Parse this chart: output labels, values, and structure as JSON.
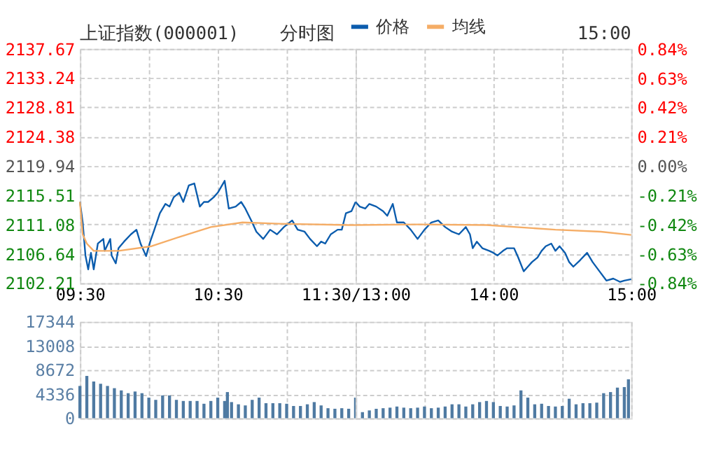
{
  "chart_data": [
    {
      "type": "line",
      "title": "上证指数(000001)",
      "subtitle": "分时图",
      "series": [
        {
          "name": "价格",
          "color": "#0b5cad",
          "x": [
            9.5,
            9.52,
            9.54,
            9.56,
            9.58,
            9.6,
            9.63,
            9.67,
            9.68,
            9.72,
            9.73,
            9.76,
            9.78,
            9.82,
            9.87,
            9.91,
            9.94,
            9.98,
            10.01,
            10.04,
            10.08,
            10.12,
            10.15,
            10.18,
            10.22,
            10.25,
            10.29,
            10.33,
            10.37,
            10.4,
            10.43,
            10.47,
            10.5,
            10.55,
            10.58,
            10.63,
            10.67,
            10.7,
            10.75,
            10.78,
            10.83,
            10.88,
            10.93,
            10.98,
            11.04,
            11.08,
            11.13,
            11.17,
            11.22,
            11.25,
            11.28,
            11.32,
            11.37,
            11.4,
            11.43,
            11.47,
            11.5
          ],
          "values": [
            2114.5,
            2111.4,
            2106.4,
            2104.3,
            2106.8,
            2104.3,
            2108.2,
            2108.9,
            2107.1,
            2108.9,
            2106.4,
            2105.2,
            2107.5,
            2108.5,
            2109.6,
            2110.3,
            2108.2,
            2106.3,
            2108.5,
            2110.3,
            2112.8,
            2114.2,
            2113.8,
            2115.2,
            2115.9,
            2114.5,
            2117.0,
            2117.3,
            2113.8,
            2114.5,
            2114.5,
            2115.2,
            2115.9,
            2117.7,
            2113.5,
            2113.8,
            2114.5,
            2113.5,
            2111.4,
            2110.0,
            2108.9,
            2110.3,
            2109.6,
            2110.7,
            2111.7,
            2110.3,
            2110.0,
            2108.9,
            2107.8,
            2108.5,
            2108.2,
            2109.6,
            2110.3,
            2110.3,
            2112.8,
            2113.1,
            2114.5
          ]
        },
        {
          "name": "均线",
          "color": "#f5ad66",
          "x": [
            9.5,
            9.52,
            9.55,
            9.6,
            9.78,
            10.02,
            10.22,
            10.45,
            10.68,
            10.95,
            11.45,
            11.5
          ],
          "values": [
            2114.5,
            2109.6,
            2108.2,
            2107.1,
            2107.1,
            2107.8,
            2109.2,
            2110.7,
            2111.4,
            2111.2,
            2111.0,
            2111.0
          ]
        }
      ],
      "xlim": [
        9.5,
        11.5
      ],
      "xticks": [
        {
          "value": 9.5,
          "label": "09:30"
        },
        {
          "value": 10,
          "label": null
        },
        {
          "value": 10.5,
          "label": "10:30"
        },
        {
          "value": 11,
          "label": null
        },
        {
          "value": 11.5,
          "label": "11:30/13:00"
        }
      ],
      "ylim": [
        2102.21,
        2137.67
      ],
      "yticks": [
        2102.21,
        2106.64,
        2111.08,
        2115.51,
        2119.94,
        2124.38,
        2128.81,
        2133.24,
        2137.67
      ],
      "grid": true,
      "legend": "top"
    },
    {
      "type": "line",
      "annotations": [
        "15:00"
      ],
      "series": [
        {
          "color": "#0b5cad",
          "x": [
            13,
            13.03,
            13.07,
            13.1,
            13.15,
            13.2,
            13.23,
            13.27,
            13.3,
            13.35,
            13.4,
            13.45,
            13.5,
            13.55,
            13.6,
            13.65,
            13.7,
            13.75,
            13.8,
            13.83,
            13.85,
            13.88,
            13.92,
            13.97,
            14,
            14.03,
            14.07,
            14.1,
            14.15,
            14.18,
            14.22,
            14.25,
            14.28,
            14.32,
            14.35,
            14.38,
            14.42,
            14.45,
            14.48,
            14.52,
            14.55,
            14.58,
            14.63,
            14.68,
            14.72,
            14.77,
            14.82,
            14.87,
            14.92,
            14.95,
            15
          ],
          "values": [
            2114.5,
            2113.8,
            2113.5,
            2114.2,
            2113.8,
            2113.1,
            2112.4,
            2114.2,
            2111.4,
            2111.4,
            2110.3,
            2108.9,
            2110.3,
            2111.4,
            2111.7,
            2110.7,
            2110.0,
            2109.6,
            2110.7,
            2109.6,
            2107.5,
            2108.5,
            2107.5,
            2107.1,
            2106.8,
            2106.4,
            2107.1,
            2107.5,
            2107.5,
            2106.1,
            2104.0,
            2104.7,
            2105.4,
            2106.1,
            2107.1,
            2107.8,
            2108.2,
            2107.1,
            2107.8,
            2106.8,
            2105.4,
            2104.7,
            2105.7,
            2106.8,
            2105.4,
            2104.0,
            2102.6,
            2102.9,
            2102.4,
            2102.6,
            2102.8
          ]
        },
        {
          "color": "#f5ad66",
          "x": [
            13,
            13.45,
            13.95,
            14.45,
            14.78,
            15
          ],
          "values": [
            2111.0,
            2111.1,
            2111.0,
            2110.3,
            2110.0,
            2109.5
          ]
        }
      ],
      "xlim": [
        13,
        15
      ],
      "xticks": [
        {
          "value": 13,
          "label": null
        },
        {
          "value": 13.5,
          "label": null
        },
        {
          "value": 14,
          "label": "14:00"
        },
        {
          "value": 14.5,
          "label": null
        },
        {
          "value": 15,
          "label": "15:00"
        }
      ],
      "ylim": [
        2102.21,
        2137.67
      ],
      "yticks": [
        2102.21,
        2106.64,
        2111.08,
        2115.51,
        2119.94,
        2124.38,
        2128.81,
        2133.24,
        2137.67
      ],
      "y2lim": [
        -0.84,
        0.84
      ],
      "y2ticks": [
        {
          "value": -0.84,
          "label": "-0.84%"
        },
        {
          "value": -0.63,
          "label": "-0.63%"
        },
        {
          "value": -0.42,
          "label": "-0.42%"
        },
        {
          "value": -0.21,
          "label": "-0.21%"
        },
        {
          "value": 0,
          "label": "0.00%"
        },
        {
          "value": 0.21,
          "label": "0.21%"
        },
        {
          "value": 0.42,
          "label": "0.42%"
        },
        {
          "value": 0.63,
          "label": "0.63%"
        },
        {
          "value": 0.84,
          "label": "0.84%"
        }
      ],
      "grid": true,
      "tick_labels": "x"
    },
    {
      "type": "bar",
      "color": "#4f7aa2",
      "x": [
        9.5,
        9.55,
        9.6,
        9.65,
        9.7,
        9.75,
        9.8,
        9.85,
        9.9,
        9.95,
        10,
        10.05,
        10.1,
        10.15,
        10.2,
        10.25,
        10.3,
        10.35,
        10.4,
        10.45,
        10.5,
        10.55,
        10.57,
        10.6,
        10.65,
        10.7,
        10.75,
        10.8,
        10.85,
        10.9,
        10.95,
        11,
        11.05,
        11.1,
        11.15,
        11.2,
        11.25,
        11.3,
        11.35,
        11.4,
        11.45,
        11.5
      ],
      "values": [
        5800,
        7600,
        6600,
        6200,
        5800,
        5400,
        5000,
        4500,
        4800,
        4500,
        3700,
        3300,
        4100,
        4100,
        3300,
        3100,
        3100,
        3100,
        2600,
        3100,
        3700,
        3100,
        4700,
        2900,
        2500,
        2300,
        3300,
        3700,
        2700,
        2700,
        2700,
        2600,
        2200,
        2200,
        2500,
        2900,
        2300,
        1800,
        1700,
        1800,
        1700,
        3700
      ],
      "xlim": [
        9.5,
        11.5
      ],
      "xticks": [
        9.5,
        10,
        10.5,
        11,
        11.5
      ],
      "ylim": [
        0,
        17344
      ],
      "yticks": [
        0,
        4336,
        8672,
        13008,
        17344
      ],
      "grid": true,
      "tick_labels": "y"
    },
    {
      "type": "bar",
      "color": "#4f7aa2",
      "x": [
        13.05,
        13.1,
        13.15,
        13.2,
        13.25,
        13.3,
        13.35,
        13.4,
        13.45,
        13.5,
        13.55,
        13.6,
        13.65,
        13.7,
        13.75,
        13.8,
        13.85,
        13.9,
        13.95,
        14,
        14.05,
        14.1,
        14.15,
        14.2,
        14.25,
        14.3,
        14.35,
        14.4,
        14.45,
        14.5,
        14.55,
        14.6,
        14.65,
        14.7,
        14.75,
        14.8,
        14.85,
        14.9,
        14.95,
        14.98
      ],
      "values": [
        1100,
        1400,
        1700,
        1800,
        1900,
        2100,
        1900,
        1800,
        1900,
        2100,
        1800,
        1900,
        2100,
        2500,
        2500,
        2100,
        2500,
        2900,
        3100,
        2900,
        2200,
        2100,
        2300,
        5000,
        3700,
        2500,
        2600,
        2200,
        2100,
        2200,
        3500,
        2500,
        2700,
        2700,
        2800,
        4500,
        4700,
        5500,
        5600,
        7000
      ],
      "xlim": [
        13,
        15
      ],
      "xticks": [
        13,
        13.5,
        14,
        14.5,
        15
      ],
      "ylim": [
        0,
        17344
      ],
      "yticks": [
        0,
        4336,
        8672,
        13008,
        17344
      ],
      "grid": true,
      "tick_labels": false
    }
  ]
}
